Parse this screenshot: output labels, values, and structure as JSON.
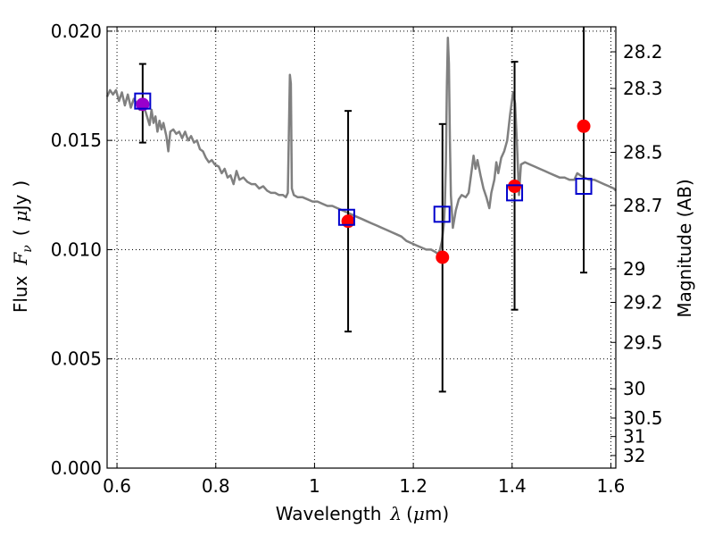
{
  "chart_data": {
    "type": "scatter",
    "title": "",
    "xlabel_prefix": "Wavelength",
    "xlabel_symbol": "λ",
    "xlabel_unit_open": "(",
    "xlabel_unit_mu": "μ",
    "xlabel_unit_rest": "m)",
    "ylabel_prefix": "Flux",
    "ylabel_symbol": "F",
    "ylabel_subscript": "ν",
    "ylabel_unit_open": "(",
    "ylabel_unit_mu": "μ",
    "ylabel_unit_rest": "Jy",
    "ylabel_unit_close": ")",
    "y2label": "Magnitude (AB)",
    "xlim": [
      0.58,
      1.61
    ],
    "ylim": [
      0.0,
      0.0202
    ],
    "grid": true,
    "x_ticks": [
      0.6,
      0.8,
      1.0,
      1.2,
      1.4,
      1.6
    ],
    "x_tick_labels": [
      "0.6",
      "0.8",
      "1",
      "1.2",
      "1.4",
      "1.6"
    ],
    "y_ticks": [
      0.0,
      0.005,
      0.01,
      0.015,
      0.02
    ],
    "y_tick_labels": [
      "0.000",
      "0.005",
      "0.010",
      "0.015",
      "0.020"
    ],
    "y2_ticks": [
      28.2,
      28.3,
      28.5,
      28.7,
      29,
      29.2,
      29.5,
      30,
      30.5,
      31,
      32
    ],
    "y2_tick_labels": [
      "28.2",
      "28.3",
      "28.5",
      "28.7",
      "29",
      "29.2",
      "29.5",
      "30",
      "30.5",
      "31",
      "32"
    ],
    "model_spectrum": {
      "color": "#808080",
      "points": [
        [
          0.58,
          0.017
        ],
        [
          0.586,
          0.0173
        ],
        [
          0.592,
          0.0171
        ],
        [
          0.598,
          0.0173
        ],
        [
          0.604,
          0.0168
        ],
        [
          0.61,
          0.0172
        ],
        [
          0.616,
          0.0166
        ],
        [
          0.622,
          0.0171
        ],
        [
          0.628,
          0.0165
        ],
        [
          0.634,
          0.0169
        ],
        [
          0.64,
          0.0167
        ],
        [
          0.646,
          0.0164
        ],
        [
          0.652,
          0.0166
        ],
        [
          0.658,
          0.0163
        ],
        [
          0.662,
          0.016
        ],
        [
          0.666,
          0.0157
        ],
        [
          0.67,
          0.0164
        ],
        [
          0.674,
          0.0158
        ],
        [
          0.678,
          0.0161
        ],
        [
          0.682,
          0.0154
        ],
        [
          0.686,
          0.0159
        ],
        [
          0.69,
          0.0155
        ],
        [
          0.694,
          0.0158
        ],
        [
          0.7,
          0.0152
        ],
        [
          0.704,
          0.0145
        ],
        [
          0.708,
          0.0154
        ],
        [
          0.714,
          0.0155
        ],
        [
          0.72,
          0.0153
        ],
        [
          0.726,
          0.0154
        ],
        [
          0.732,
          0.0151
        ],
        [
          0.738,
          0.0154
        ],
        [
          0.744,
          0.015
        ],
        [
          0.75,
          0.0152
        ],
        [
          0.756,
          0.0149
        ],
        [
          0.762,
          0.015
        ],
        [
          0.768,
          0.0146
        ],
        [
          0.774,
          0.0145
        ],
        [
          0.78,
          0.0142
        ],
        [
          0.786,
          0.014
        ],
        [
          0.792,
          0.0141
        ],
        [
          0.798,
          0.0139
        ],
        [
          0.806,
          0.0138
        ],
        [
          0.812,
          0.0135
        ],
        [
          0.818,
          0.0137
        ],
        [
          0.824,
          0.0133
        ],
        [
          0.83,
          0.0134
        ],
        [
          0.836,
          0.013
        ],
        [
          0.842,
          0.0136
        ],
        [
          0.848,
          0.0132
        ],
        [
          0.856,
          0.0133
        ],
        [
          0.864,
          0.0131
        ],
        [
          0.872,
          0.013
        ],
        [
          0.88,
          0.013
        ],
        [
          0.888,
          0.0128
        ],
        [
          0.896,
          0.0129
        ],
        [
          0.904,
          0.0127
        ],
        [
          0.912,
          0.0126
        ],
        [
          0.92,
          0.0126
        ],
        [
          0.928,
          0.0125
        ],
        [
          0.936,
          0.0125
        ],
        [
          0.942,
          0.0124
        ],
        [
          0.946,
          0.0126
        ],
        [
          0.95,
          0.018
        ],
        [
          0.952,
          0.0176
        ],
        [
          0.954,
          0.0128
        ],
        [
          0.958,
          0.0125
        ],
        [
          0.966,
          0.0124
        ],
        [
          0.976,
          0.0124
        ],
        [
          0.986,
          0.0123
        ],
        [
          0.996,
          0.0122
        ],
        [
          1.006,
          0.0122
        ],
        [
          1.016,
          0.0121
        ],
        [
          1.026,
          0.012
        ],
        [
          1.036,
          0.012
        ],
        [
          1.046,
          0.0119
        ],
        [
          1.056,
          0.0118
        ],
        [
          1.066,
          0.0117
        ],
        [
          1.076,
          0.0116
        ],
        [
          1.086,
          0.0115
        ],
        [
          1.096,
          0.0114
        ],
        [
          1.106,
          0.0113
        ],
        [
          1.116,
          0.0112
        ],
        [
          1.126,
          0.0111
        ],
        [
          1.136,
          0.011
        ],
        [
          1.146,
          0.0109
        ],
        [
          1.156,
          0.0108
        ],
        [
          1.166,
          0.0107
        ],
        [
          1.176,
          0.0106
        ],
        [
          1.186,
          0.0104
        ],
        [
          1.196,
          0.0103
        ],
        [
          1.206,
          0.0102
        ],
        [
          1.216,
          0.0101
        ],
        [
          1.226,
          0.01
        ],
        [
          1.236,
          0.01
        ],
        [
          1.244,
          0.0099
        ],
        [
          1.25,
          0.0098
        ],
        [
          1.254,
          0.01
        ],
        [
          1.258,
          0.0104
        ],
        [
          1.262,
          0.0112
        ],
        [
          1.264,
          0.0121
        ],
        [
          1.266,
          0.014
        ],
        [
          1.268,
          0.0175
        ],
        [
          1.27,
          0.0197
        ],
        [
          1.272,
          0.0185
        ],
        [
          1.274,
          0.015
        ],
        [
          1.276,
          0.0125
        ],
        [
          1.28,
          0.011
        ],
        [
          1.286,
          0.0118
        ],
        [
          1.292,
          0.0123
        ],
        [
          1.298,
          0.0125
        ],
        [
          1.306,
          0.0124
        ],
        [
          1.312,
          0.0126
        ],
        [
          1.318,
          0.0136
        ],
        [
          1.322,
          0.0143
        ],
        [
          1.326,
          0.0137
        ],
        [
          1.33,
          0.0141
        ],
        [
          1.336,
          0.0134
        ],
        [
          1.342,
          0.0128
        ],
        [
          1.348,
          0.0124
        ],
        [
          1.354,
          0.0119
        ],
        [
          1.358,
          0.0126
        ],
        [
          1.364,
          0.0132
        ],
        [
          1.368,
          0.014
        ],
        [
          1.372,
          0.0135
        ],
        [
          1.378,
          0.0142
        ],
        [
          1.384,
          0.0145
        ],
        [
          1.39,
          0.015
        ],
        [
          1.396,
          0.0162
        ],
        [
          1.402,
          0.0172
        ],
        [
          1.406,
          0.0167
        ],
        [
          1.41,
          0.0148
        ],
        [
          1.414,
          0.0125
        ],
        [
          1.418,
          0.0139
        ],
        [
          1.426,
          0.014
        ],
        [
          1.436,
          0.0139
        ],
        [
          1.446,
          0.0138
        ],
        [
          1.456,
          0.0137
        ],
        [
          1.466,
          0.0136
        ],
        [
          1.476,
          0.0135
        ],
        [
          1.486,
          0.0134
        ],
        [
          1.496,
          0.0133
        ],
        [
          1.506,
          0.0133
        ],
        [
          1.516,
          0.0132
        ],
        [
          1.526,
          0.0132
        ],
        [
          1.532,
          0.0135
        ],
        [
          1.538,
          0.0134
        ],
        [
          1.546,
          0.0133
        ],
        [
          1.556,
          0.0132
        ],
        [
          1.566,
          0.0132
        ],
        [
          1.576,
          0.0131
        ],
        [
          1.586,
          0.013
        ],
        [
          1.596,
          0.0129
        ],
        [
          1.606,
          0.0128
        ],
        [
          1.61,
          0.0127
        ]
      ]
    },
    "observed": {
      "color": "#ff0000",
      "points": [
        {
          "x": 0.652,
          "y": 0.01665,
          "yerr_low": 0.0149,
          "yerr_high": 0.0185
        },
        {
          "x": 1.068,
          "y": 0.0113,
          "yerr_low": 0.00625,
          "yerr_high": 0.01635
        },
        {
          "x": 1.259,
          "y": 0.00965,
          "yerr_low": 0.0035,
          "yerr_high": 0.01575
        },
        {
          "x": 1.405,
          "y": 0.0129,
          "yerr_low": 0.00725,
          "yerr_high": 0.0186
        },
        {
          "x": 1.545,
          "y": 0.01565,
          "yerr_low": 0.00895,
          "yerr_high": 0.0202
        }
      ]
    },
    "model_photometry": {
      "color": "#0000cc",
      "points": [
        {
          "x": 0.652,
          "y": 0.0168
        },
        {
          "x": 1.065,
          "y": 0.01148
        },
        {
          "x": 1.258,
          "y": 0.01162
        },
        {
          "x": 1.405,
          "y": 0.0126
        },
        {
          "x": 1.545,
          "y": 0.0129
        }
      ]
    },
    "extra_marker": {
      "x": 0.652,
      "y": 0.01665,
      "color": "#9900cc"
    }
  }
}
